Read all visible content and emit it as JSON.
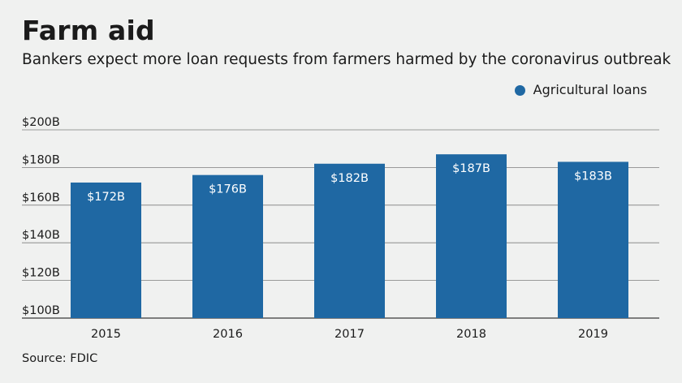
{
  "header": {
    "title": "Farm aid",
    "subtitle": "Bankers expect more loan requests from farmers harmed by the coronavirus outbreak"
  },
  "footer": {
    "source": "Source: FDIC"
  },
  "colors": {
    "bar": "#1f68a3",
    "grid": "#7d7d7d",
    "background": "#f0f1f0",
    "label_on_bar": "#ffffff"
  },
  "chart_data": {
    "type": "bar",
    "categories": [
      "2015",
      "2016",
      "2017",
      "2018",
      "2019"
    ],
    "series": [
      {
        "name": "Agricultural loans",
        "values": [
          172,
          176,
          182,
          187,
          183
        ],
        "labels": [
          "$172B",
          "$176B",
          "$182B",
          "$187B",
          "$183B"
        ]
      }
    ],
    "yticks": [
      100,
      120,
      140,
      160,
      180,
      200
    ],
    "ytick_labels": [
      "$100B",
      "$120B",
      "$140B",
      "$160B",
      "$180B",
      "$200B"
    ],
    "ylim": [
      100,
      200
    ],
    "xlabel": "",
    "ylabel": "",
    "grid": true,
    "legend_position": "top-right"
  }
}
